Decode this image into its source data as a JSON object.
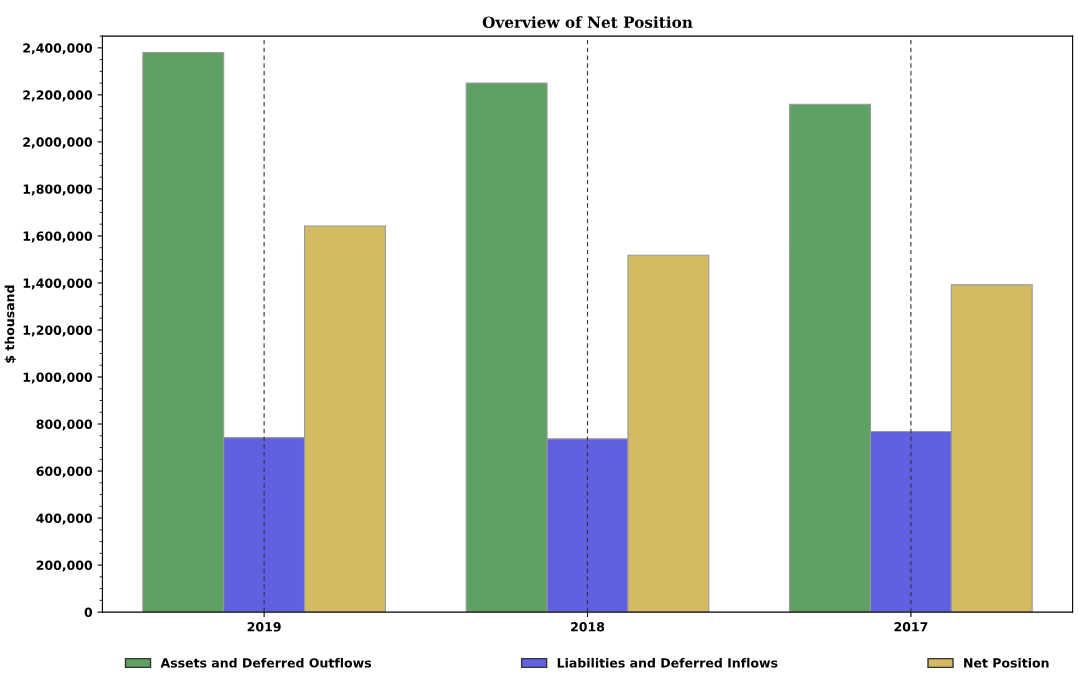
{
  "chart_data": {
    "type": "bar",
    "title": "Overview of Net Position",
    "ylabel": "$ thousand",
    "categories": [
      "2019",
      "2018",
      "2017"
    ],
    "series": [
      {
        "name": "Assets and Deferred Outflows",
        "color": "#5fa162",
        "values": [
          2380000,
          2250000,
          2160000
        ]
      },
      {
        "name": "Liabilities and Deferred Inflows",
        "color": "#6060e0",
        "values": [
          742000,
          737000,
          768000
        ]
      },
      {
        "name": "Net Position",
        "color": "#d4ba62",
        "values": [
          1642000,
          1518000,
          1392000
        ]
      }
    ],
    "ylim": [
      0,
      2450000
    ],
    "yticks": [
      {
        "value": 0,
        "label": "0"
      },
      {
        "value": 200000,
        "label": "200,000"
      },
      {
        "value": 400000,
        "label": "400,000"
      },
      {
        "value": 600000,
        "label": "600,000"
      },
      {
        "value": 800000,
        "label": "800,000"
      },
      {
        "value": 1000000,
        "label": "1,000,000"
      },
      {
        "value": 1200000,
        "label": "1,200,000"
      },
      {
        "value": 1400000,
        "label": "1,400,000"
      },
      {
        "value": 1600000,
        "label": "1,600,000"
      },
      {
        "value": 1800000,
        "label": "1,800,000"
      },
      {
        "value": 2000000,
        "label": "2,000,000"
      },
      {
        "value": 2200000,
        "label": "2,200,000"
      },
      {
        "value": 2400000,
        "label": "2,400,000"
      }
    ],
    "grid": "x",
    "legend": "bottom"
  }
}
